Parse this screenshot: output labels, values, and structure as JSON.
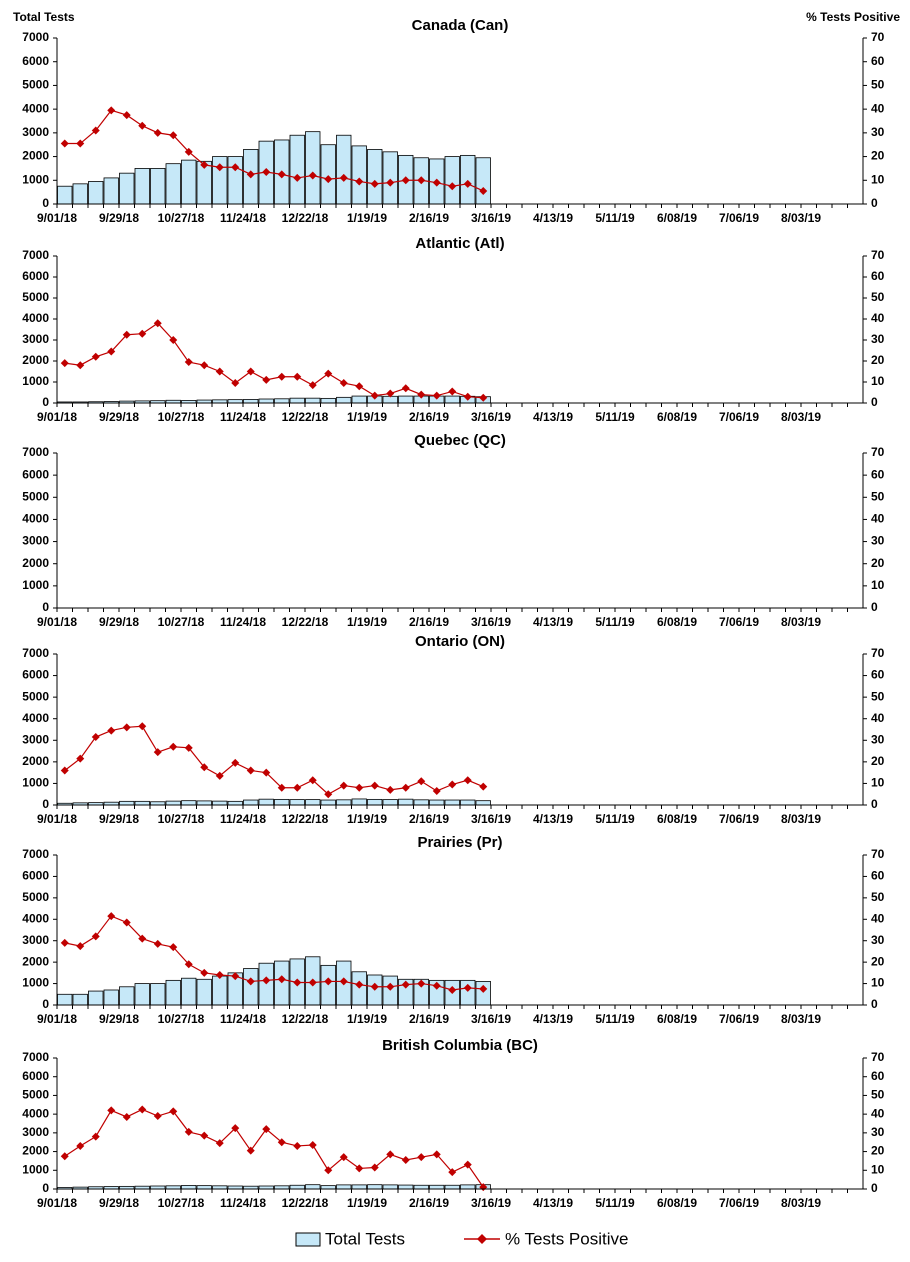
{
  "chart_data": [
    {
      "type": "combo",
      "title": "Canada (Can)",
      "y_label": "Total Tests",
      "y2_label": "% Tests Positive",
      "categories": [
        "9/01/18",
        null,
        null,
        null,
        "9/29/18",
        null,
        null,
        null,
        "10/27/18",
        null,
        null,
        null,
        "11/24/18",
        null,
        null,
        null,
        "12/22/18",
        null,
        null,
        null,
        "1/19/19",
        null,
        null,
        null,
        "2/16/19",
        null,
        null,
        null,
        "3/16/19",
        null,
        null,
        null,
        "4/13/19",
        null,
        null,
        null,
        "5/11/19",
        null,
        null,
        null,
        "6/08/19",
        null,
        null,
        null,
        "7/06/19",
        null,
        null,
        null,
        "8/03/19",
        null,
        null,
        null
      ],
      "series": [
        {
          "name": "Total Tests",
          "type": "bar",
          "color": "#c6e8f8",
          "values": [
            750,
            850,
            950,
            1100,
            1300,
            1500,
            1500,
            1700,
            1850,
            1800,
            2000,
            2000,
            2300,
            2650,
            2700,
            2900,
            3050,
            2500,
            2900,
            2450,
            2300,
            2200,
            2050,
            1950,
            1900,
            2000,
            2050,
            1950,
            null,
            null,
            null,
            null,
            null,
            null,
            null,
            null,
            null,
            null,
            null,
            null,
            null,
            null,
            null,
            null,
            null,
            null,
            null,
            null,
            null,
            null,
            null,
            null
          ]
        },
        {
          "name": "% Tests Positive",
          "type": "line",
          "axis": "y2",
          "color": "#c00000",
          "values": [
            25.5,
            25.5,
            31,
            39.5,
            37.5,
            33,
            30,
            29,
            22,
            16.5,
            15.5,
            15.5,
            12.5,
            13.5,
            12.5,
            11,
            12,
            10.5,
            11,
            9.5,
            8.5,
            9,
            10,
            10,
            9,
            7.5,
            8.5,
            5.5,
            null,
            null,
            null,
            null,
            null,
            null,
            null,
            null,
            null,
            null,
            null,
            null,
            null,
            null,
            null,
            null,
            null,
            null,
            null,
            null,
            null,
            null,
            null,
            null
          ]
        }
      ],
      "ylim": [
        0,
        7000
      ],
      "yticks": [
        0,
        1000,
        2000,
        3000,
        4000,
        5000,
        6000,
        7000
      ],
      "y2lim": [
        0,
        70
      ],
      "y2ticks": [
        0,
        10,
        20,
        30,
        40,
        50,
        60,
        70
      ]
    },
    {
      "type": "combo",
      "title": "Atlantic (Atl)",
      "categories": [
        "9/01/18",
        null,
        null,
        null,
        "9/29/18",
        null,
        null,
        null,
        "10/27/18",
        null,
        null,
        null,
        "11/24/18",
        null,
        null,
        null,
        "12/22/18",
        null,
        null,
        null,
        "1/19/19",
        null,
        null,
        null,
        "2/16/19",
        null,
        null,
        null,
        "3/16/19",
        null,
        null,
        null,
        "4/13/19",
        null,
        null,
        null,
        "5/11/19",
        null,
        null,
        null,
        "6/08/19",
        null,
        null,
        null,
        "7/06/19",
        null,
        null,
        null,
        "8/03/19",
        null,
        null,
        null
      ],
      "series": [
        {
          "name": "Total Tests",
          "type": "bar",
          "color": "#c6e8f8",
          "values": [
            50,
            50,
            60,
            70,
            90,
            100,
            110,
            130,
            120,
            140,
            150,
            160,
            170,
            190,
            200,
            230,
            230,
            220,
            270,
            330,
            330,
            320,
            330,
            330,
            330,
            330,
            320,
            300,
            null,
            null,
            null,
            null,
            null,
            null,
            null,
            null,
            null,
            null,
            null,
            null,
            null,
            null,
            null,
            null,
            null,
            null,
            null,
            null,
            null,
            null,
            null,
            null
          ]
        },
        {
          "name": "% Tests Positive",
          "type": "line",
          "axis": "y2",
          "color": "#c00000",
          "values": [
            19,
            18,
            22,
            24.5,
            32.5,
            33,
            38,
            30,
            19.5,
            18,
            15,
            9.5,
            15,
            11,
            12.5,
            12.5,
            8.5,
            14,
            9.5,
            8,
            3.5,
            4.5,
            7,
            4,
            3.5,
            5.5,
            3,
            2.5,
            null,
            null,
            null,
            null,
            null,
            null,
            null,
            null,
            null,
            null,
            null,
            null,
            null,
            null,
            null,
            null,
            null,
            null,
            null,
            null,
            null,
            null,
            null,
            null
          ]
        }
      ],
      "ylim": [
        0,
        7000
      ],
      "yticks": [
        0,
        1000,
        2000,
        3000,
        4000,
        5000,
        6000,
        7000
      ],
      "y2lim": [
        0,
        70
      ],
      "y2ticks": [
        0,
        10,
        20,
        30,
        40,
        50,
        60,
        70
      ]
    },
    {
      "type": "combo",
      "title": "Quebec (QC)",
      "categories": [
        "9/01/18",
        null,
        null,
        null,
        "9/29/18",
        null,
        null,
        null,
        "10/27/18",
        null,
        null,
        null,
        "11/24/18",
        null,
        null,
        null,
        "12/22/18",
        null,
        null,
        null,
        "1/19/19",
        null,
        null,
        null,
        "2/16/19",
        null,
        null,
        null,
        "3/16/19",
        null,
        null,
        null,
        "4/13/19",
        null,
        null,
        null,
        "5/11/19",
        null,
        null,
        null,
        "6/08/19",
        null,
        null,
        null,
        "7/06/19",
        null,
        null,
        null,
        "8/03/19",
        null,
        null,
        null
      ],
      "series": [],
      "ylim": [
        0,
        7000
      ],
      "yticks": [
        0,
        1000,
        2000,
        3000,
        4000,
        5000,
        6000,
        7000
      ],
      "y2lim": [
        0,
        70
      ],
      "y2ticks": [
        0,
        10,
        20,
        30,
        40,
        50,
        60,
        70
      ]
    },
    {
      "type": "combo",
      "title": "Ontario (ON)",
      "categories": [
        "9/01/18",
        null,
        null,
        null,
        "9/29/18",
        null,
        null,
        null,
        "10/27/18",
        null,
        null,
        null,
        "11/24/18",
        null,
        null,
        null,
        "12/22/18",
        null,
        null,
        null,
        "1/19/19",
        null,
        null,
        null,
        "2/16/19",
        null,
        null,
        null,
        "3/16/19",
        null,
        null,
        null,
        "4/13/19",
        null,
        null,
        null,
        "5/11/19",
        null,
        null,
        null,
        "6/08/19",
        null,
        null,
        null,
        "7/06/19",
        null,
        null,
        null,
        "8/03/19",
        null,
        null,
        null
      ],
      "series": [
        {
          "name": "Total Tests",
          "type": "bar",
          "color": "#c6e8f8",
          "values": [
            80,
            100,
            110,
            130,
            170,
            170,
            150,
            180,
            200,
            190,
            180,
            170,
            230,
            270,
            260,
            250,
            250,
            230,
            240,
            280,
            260,
            250,
            270,
            240,
            230,
            230,
            230,
            200,
            null,
            null,
            null,
            null,
            null,
            null,
            null,
            null,
            null,
            null,
            null,
            null,
            null,
            null,
            null,
            null,
            null,
            null,
            null,
            null,
            null,
            null,
            null,
            null
          ]
        },
        {
          "name": "% Tests Positive",
          "type": "line",
          "axis": "y2",
          "color": "#c00000",
          "values": [
            16,
            21.5,
            31.5,
            34.5,
            36,
            36.5,
            24.5,
            27,
            26.5,
            17.5,
            13.5,
            19.5,
            16,
            15,
            8,
            8,
            11.5,
            5,
            9,
            8,
            9,
            7,
            8,
            11,
            6.5,
            9.5,
            11.5,
            8.5,
            null,
            null,
            null,
            null,
            null,
            null,
            null,
            null,
            null,
            null,
            null,
            null,
            null,
            null,
            null,
            null,
            null,
            null,
            null,
            null,
            null,
            null,
            null,
            null
          ]
        }
      ],
      "ylim": [
        0,
        7000
      ],
      "yticks": [
        0,
        1000,
        2000,
        3000,
        4000,
        5000,
        6000,
        7000
      ],
      "y2lim": [
        0,
        70
      ],
      "y2ticks": [
        0,
        10,
        20,
        30,
        40,
        50,
        60,
        70
      ]
    },
    {
      "type": "combo",
      "title": "Prairies (Pr)",
      "categories": [
        "9/01/18",
        null,
        null,
        null,
        "9/29/18",
        null,
        null,
        null,
        "10/27/18",
        null,
        null,
        null,
        "11/24/18",
        null,
        null,
        null,
        "12/22/18",
        null,
        null,
        null,
        "1/19/19",
        null,
        null,
        null,
        "2/16/19",
        null,
        null,
        null,
        "3/16/19",
        null,
        null,
        null,
        "4/13/19",
        null,
        null,
        null,
        "5/11/19",
        null,
        null,
        null,
        "6/08/19",
        null,
        null,
        null,
        "7/06/19",
        null,
        null,
        null,
        "8/03/19",
        null,
        null,
        null
      ],
      "series": [
        {
          "name": "Total Tests",
          "type": "bar",
          "color": "#c6e8f8",
          "values": [
            500,
            500,
            650,
            700,
            850,
            1000,
            1000,
            1150,
            1250,
            1200,
            1350,
            1500,
            1700,
            1950,
            2050,
            2150,
            2250,
            1850,
            2050,
            1550,
            1400,
            1350,
            1200,
            1200,
            1150,
            1150,
            1150,
            1100,
            null,
            null,
            null,
            null,
            null,
            null,
            null,
            null,
            null,
            null,
            null,
            null,
            null,
            null,
            null,
            null,
            null,
            null,
            null,
            null,
            null,
            null,
            null,
            null
          ]
        },
        {
          "name": "% Tests Positive",
          "type": "line",
          "axis": "y2",
          "color": "#c00000",
          "values": [
            29,
            27.5,
            32,
            41.5,
            38.5,
            31,
            28.5,
            27,
            19,
            15,
            14,
            13.5,
            11,
            11.5,
            12,
            10.5,
            10.5,
            11,
            11,
            9.5,
            8.5,
            8.5,
            9.5,
            10,
            9,
            7,
            8,
            7.5,
            null,
            null,
            null,
            null,
            null,
            null,
            null,
            null,
            null,
            null,
            null,
            null,
            null,
            null,
            null,
            null,
            null,
            null,
            null,
            null,
            null,
            null,
            null,
            null
          ]
        }
      ],
      "ylim": [
        0,
        7000
      ],
      "yticks": [
        0,
        1000,
        2000,
        3000,
        4000,
        5000,
        6000,
        7000
      ],
      "y2lim": [
        0,
        70
      ],
      "y2ticks": [
        0,
        10,
        20,
        30,
        40,
        50,
        60,
        70
      ]
    },
    {
      "type": "combo",
      "title": "British Columbia (BC)",
      "categories": [
        "9/01/18",
        null,
        null,
        null,
        "9/29/18",
        null,
        null,
        null,
        "10/27/18",
        null,
        null,
        null,
        "11/24/18",
        null,
        null,
        null,
        "12/22/18",
        null,
        null,
        null,
        "1/19/19",
        null,
        null,
        null,
        "2/16/19",
        null,
        null,
        null,
        "3/16/19",
        null,
        null,
        null,
        "4/13/19",
        null,
        null,
        null,
        "5/11/19",
        null,
        null,
        null,
        "6/08/19",
        null,
        null,
        null,
        "7/06/19",
        null,
        null,
        null,
        "8/03/19",
        null,
        null,
        null
      ],
      "series": [
        {
          "name": "Total Tests",
          "type": "bar",
          "color": "#c6e8f8",
          "values": [
            80,
            100,
            120,
            130,
            140,
            150,
            160,
            170,
            190,
            180,
            170,
            160,
            150,
            160,
            170,
            200,
            230,
            180,
            220,
            220,
            230,
            220,
            210,
            200,
            200,
            200,
            220,
            230,
            null,
            null,
            null,
            null,
            null,
            null,
            null,
            null,
            null,
            null,
            null,
            null,
            null,
            null,
            null,
            null,
            null,
            null,
            null,
            null,
            null,
            null,
            null,
            null
          ]
        },
        {
          "name": "% Tests Positive",
          "type": "line",
          "axis": "y2",
          "color": "#c00000",
          "values": [
            17.5,
            23,
            28,
            42,
            38.5,
            42.5,
            39,
            41.5,
            30.5,
            28.5,
            24.5,
            32.5,
            20.5,
            32,
            25,
            23,
            23.5,
            10,
            17,
            11,
            11.5,
            18.5,
            15.5,
            17,
            18.5,
            9,
            13,
            1,
            null,
            null,
            null,
            null,
            null,
            null,
            null,
            null,
            null,
            null,
            null,
            null,
            null,
            null,
            null,
            null,
            null,
            null,
            null,
            null,
            null,
            null,
            null,
            null
          ]
        }
      ],
      "ylim": [
        0,
        7000
      ],
      "yticks": [
        0,
        1000,
        2000,
        3000,
        4000,
        5000,
        6000,
        7000
      ],
      "y2lim": [
        0,
        70
      ],
      "y2ticks": [
        0,
        10,
        20,
        30,
        40,
        50,
        60,
        70
      ]
    }
  ]
}
